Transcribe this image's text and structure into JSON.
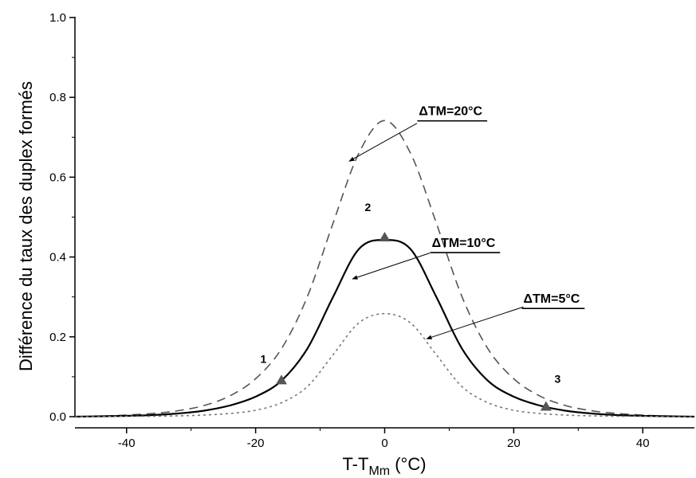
{
  "chart_data": {
    "type": "line",
    "xlabel": "T-T",
    "xlabel_sub": "Mm",
    "xlabel_unit": " (°C)",
    "ylabel": "Différence du taux des duplex formés",
    "xlim": [
      -48,
      48
    ],
    "ylim": [
      0,
      1.0
    ],
    "x_ticks": [
      -40,
      -20,
      0,
      20,
      40
    ],
    "y_ticks": [
      0.0,
      0.2,
      0.4,
      0.6,
      0.8,
      1.0
    ],
    "x_tick_labels": [
      "-40",
      "-20",
      "0",
      "20",
      "40"
    ],
    "y_tick_labels": [
      "0.0",
      "0.2",
      "0.4",
      "0.6",
      "0.8",
      "1.0"
    ],
    "grid": false,
    "series": [
      {
        "name": "ΔTM=20°C",
        "style": "dashed",
        "color": "#555555",
        "x": [
          -48,
          -44,
          -40,
          -36,
          -32,
          -28,
          -24,
          -20,
          -16,
          -12,
          -8,
          -4,
          0,
          4,
          8,
          12,
          16,
          20,
          24,
          28,
          32,
          36,
          40,
          44,
          48
        ],
        "y": [
          0.0,
          0.001,
          0.004,
          0.008,
          0.015,
          0.028,
          0.052,
          0.095,
          0.17,
          0.3,
          0.485,
          0.66,
          0.742,
          0.66,
          0.485,
          0.3,
          0.17,
          0.095,
          0.052,
          0.028,
          0.015,
          0.008,
          0.004,
          0.001,
          0.0
        ]
      },
      {
        "name": "ΔTM=10°C",
        "style": "solid",
        "color": "#000000",
        "x": [
          -48,
          -44,
          -40,
          -36,
          -32,
          -28,
          -24,
          -20,
          -16,
          -12,
          -8,
          -4,
          0,
          4,
          8,
          12,
          16,
          20,
          24,
          28,
          32,
          36,
          40,
          44,
          48
        ],
        "y": [
          0.0,
          0.001,
          0.002,
          0.004,
          0.008,
          0.015,
          0.028,
          0.05,
          0.09,
          0.17,
          0.3,
          0.42,
          0.443,
          0.42,
          0.3,
          0.17,
          0.09,
          0.05,
          0.028,
          0.015,
          0.008,
          0.004,
          0.002,
          0.001,
          0.0
        ]
      },
      {
        "name": "ΔTM=5°C",
        "style": "dotted",
        "color": "#777777",
        "x": [
          -48,
          -44,
          -40,
          -36,
          -32,
          -28,
          -24,
          -20,
          -16,
          -12,
          -8,
          -4,
          0,
          4,
          8,
          12,
          16,
          20,
          24,
          28,
          32,
          36,
          40,
          44,
          48
        ],
        "y": [
          0.0,
          0.0,
          0.001,
          0.001,
          0.002,
          0.004,
          0.008,
          0.016,
          0.035,
          0.075,
          0.155,
          0.235,
          0.258,
          0.235,
          0.155,
          0.075,
          0.035,
          0.016,
          0.008,
          0.004,
          0.002,
          0.001,
          0.001,
          0.0,
          0.0
        ]
      }
    ],
    "annotations": [
      {
        "text": "ΔTM=20°C",
        "label_x": 5.3,
        "label_y": 0.755,
        "arrow_from": [
          5.0,
          0.735
        ],
        "arrow_to": [
          -5.5,
          0.64
        ]
      },
      {
        "text": "ΔTM=10°C",
        "label_x": 7.3,
        "label_y": 0.425,
        "arrow_from": [
          7.0,
          0.41
        ],
        "arrow_to": [
          -5.0,
          0.345
        ]
      },
      {
        "text": "ΔTM=5°C",
        "label_x": 21.5,
        "label_y": 0.285,
        "arrow_from": [
          21.5,
          0.275
        ],
        "arrow_to": [
          6.5,
          0.195
        ]
      }
    ],
    "markers": [
      {
        "label": "1",
        "x": -16,
        "y": 0.091,
        "label_x": -18.8,
        "label_y": 0.135
      },
      {
        "label": "2",
        "x": 0,
        "y": 0.449,
        "label_x": -2.6,
        "label_y": 0.515
      },
      {
        "label": "3",
        "x": 25,
        "y": 0.025,
        "label_x": 26.8,
        "label_y": 0.085
      }
    ],
    "marker_color": "#555555"
  }
}
